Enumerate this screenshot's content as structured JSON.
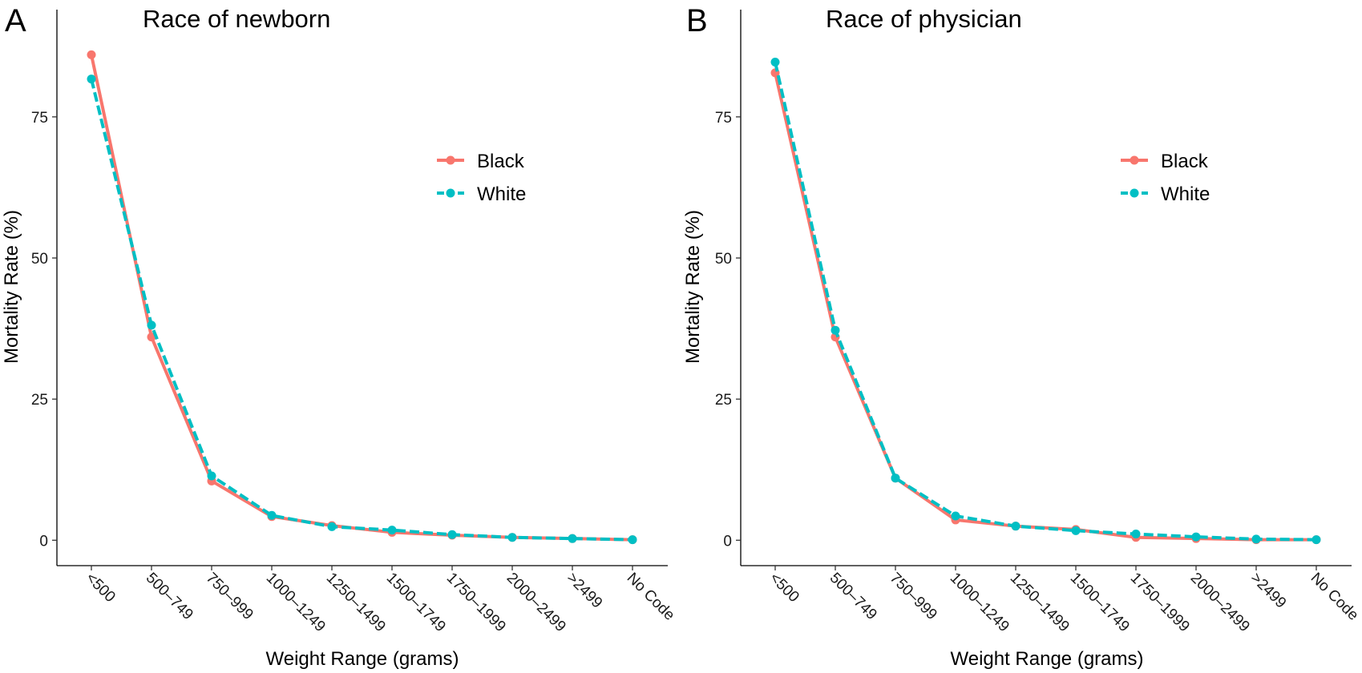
{
  "chart_data": [
    {
      "type": "line",
      "panel": "A",
      "title": "Race of newborn",
      "xlabel": "Weight Range (grams)",
      "ylabel": "Mortality Rate (%)",
      "categories": [
        "<500",
        "500–749",
        "750–999",
        "1000–1249",
        "1250–1499",
        "1500–1749",
        "1750–1999",
        "2000–2499",
        ">2499",
        "No Code"
      ],
      "yticks": [
        "0",
        "25",
        "50",
        "75"
      ],
      "ylim": [
        -4.5,
        94
      ],
      "grid": false,
      "legend_position": "right",
      "series": [
        {
          "name": "Black",
          "color": "#F8766D",
          "line_style": "solid",
          "values": [
            86,
            36,
            10.5,
            4.2,
            2.6,
            1.4,
            0.9,
            0.5,
            0.3,
            0.1
          ]
        },
        {
          "name": "White",
          "color": "#00BFC4",
          "line_style": "dashed",
          "values": [
            81.7,
            38.1,
            11.4,
            4.4,
            2.4,
            1.8,
            1.0,
            0.5,
            0.3,
            0.1
          ]
        }
      ]
    },
    {
      "type": "line",
      "panel": "B",
      "title": "Race of physician",
      "xlabel": "Weight Range (grams)",
      "ylabel": "Mortality Rate (%)",
      "categories": [
        "<500",
        "500–749",
        "750–999",
        "1000–1249",
        "1250–1499",
        "1500–1749",
        "1750–1999",
        "2000–2499",
        ">2499",
        "No Code"
      ],
      "yticks": [
        "0",
        "25",
        "50",
        "75"
      ],
      "ylim": [
        -4.5,
        94
      ],
      "grid": false,
      "legend_position": "right",
      "series": [
        {
          "name": "Black",
          "color": "#F8766D",
          "line_style": "solid",
          "values": [
            82.8,
            36,
            11,
            3.6,
            2.5,
            1.9,
            0.5,
            0.3,
            0.1,
            0.1
          ]
        },
        {
          "name": "White",
          "color": "#00BFC4",
          "line_style": "dashed",
          "values": [
            84.7,
            37.2,
            11,
            4.3,
            2.5,
            1.7,
            1.1,
            0.6,
            0.2,
            0.1
          ]
        }
      ]
    }
  ]
}
